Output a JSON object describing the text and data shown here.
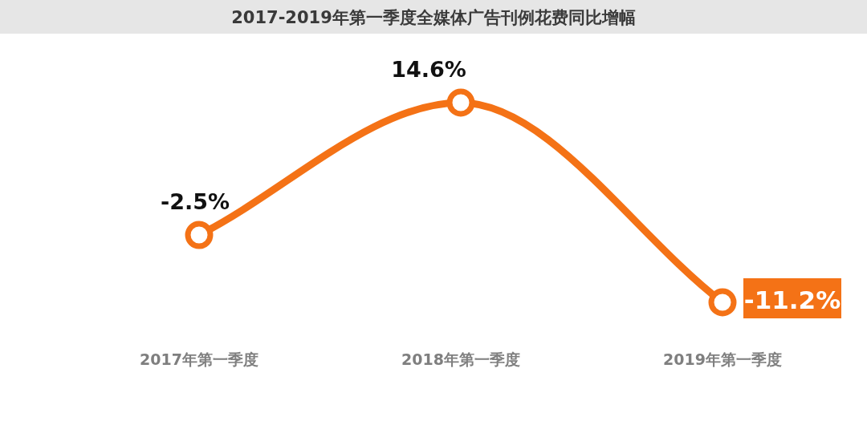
{
  "chart_data": {
    "type": "line",
    "title": "2017-2019年第一季度全媒体广告刊例花费同比增幅",
    "categories": [
      "2017年第一季度",
      "2018年第一季度",
      "2019年第一季度"
    ],
    "series": [
      {
        "color": "#f47216",
        "values": [
          -2.5,
          14.6,
          -11.2
        ],
        "value_labels": [
          "-2.5%",
          "14.6%",
          "-11.2%"
        ]
      }
    ],
    "marker": "circle",
    "line_style": "solid"
  }
}
